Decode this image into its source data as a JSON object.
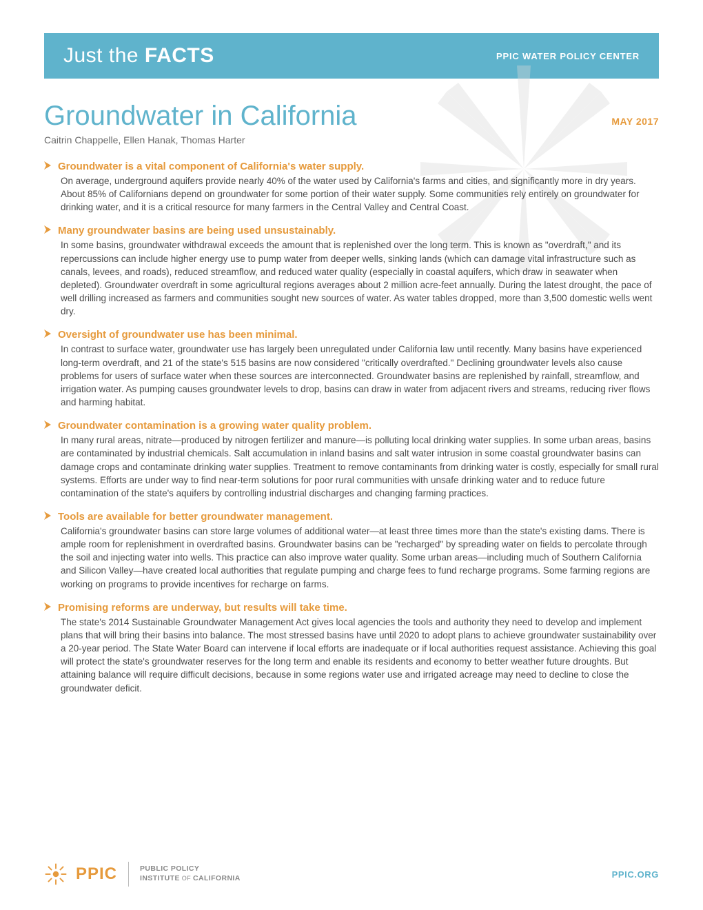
{
  "colors": {
    "teal": "#5fb3cc",
    "orange": "#e69a3c",
    "body_text": "#4a4a4a",
    "light_gray": "#d8d8d8",
    "footer_gray": "#888888",
    "white": "#ffffff"
  },
  "banner": {
    "left_light": "Just the ",
    "left_bold": "FACTS",
    "right": "PPIC WATER POLICY CENTER"
  },
  "title": "Groundwater in California",
  "date": "MAY 2017",
  "authors": "Caitrin Chappelle, Ellen Hanak, Thomas Harter",
  "sections": [
    {
      "heading": "Groundwater is a vital component of California's water supply.",
      "body": "On average, underground aquifers provide nearly 40% of the water used by California's farms and cities, and significantly more in dry years. About 85% of Californians depend on groundwater for some portion of their water supply. Some communities rely entirely on groundwater for drinking water, and it is a critical resource for many farmers in the Central Valley and Central Coast."
    },
    {
      "heading": "Many groundwater basins are being used unsustainably.",
      "body": "In some basins, groundwater withdrawal exceeds the amount that is replenished over the long term. This is known as \"overdraft,\" and its repercussions can include higher energy use to pump water from deeper wells, sinking lands (which can damage vital infrastructure such as canals, levees, and roads), reduced streamflow, and reduced water quality (especially in coastal aquifers, which draw in seawater when depleted). Groundwater overdraft in some agricultural regions averages about 2 million acre-feet annually. During the latest drought, the pace of well drilling increased as farmers and communities sought new sources of water. As water tables dropped, more than 3,500 domestic wells went dry."
    },
    {
      "heading": "Oversight of groundwater use has been minimal.",
      "body": "In contrast to surface water, groundwater use has largely been unregulated under California law until recently. Many basins have experienced long-term overdraft, and 21 of the state's 515 basins are now considered \"critically overdrafted.\" Declining groundwater levels also cause problems for users of surface water when these sources are interconnected. Groundwater basins are replenished by rainfall, streamflow, and irrigation water. As pumping causes groundwater levels to drop, basins can draw in water from adjacent rivers and streams, reducing river flows and harming habitat."
    },
    {
      "heading": "Groundwater contamination is a growing water quality problem.",
      "body": "In many rural areas, nitrate—produced by nitrogen fertilizer and manure—is polluting local drinking water supplies. In some urban areas, basins are contaminated by industrial chemicals. Salt accumulation in inland basins and salt water intrusion in some coastal groundwater basins can damage crops and contaminate drinking water supplies. Treatment to remove contaminants from drinking water is costly, especially for small rural systems. Efforts are under way to find near-term solutions for poor rural communities with unsafe drinking water and to reduce future contamination of the state's aquifers by controlling industrial discharges and changing farming practices."
    },
    {
      "heading": "Tools are available for better groundwater management.",
      "body": "California's groundwater basins can store large volumes of additional water—at least three times more than the state's existing dams. There is ample room for replenishment in overdrafted basins. Groundwater basins can be \"recharged\" by spreading water on fields to percolate through the soil and injecting water into wells. This practice can also improve water quality. Some urban areas—including much of Southern California and Silicon Valley—have created local authorities that regulate pumping and charge fees to fund recharge programs. Some farming regions are working on programs to provide incentives for recharge on farms."
    },
    {
      "heading": "Promising reforms are underway, but results will take time.",
      "body": "The state's 2014 Sustainable Groundwater Management Act gives local agencies the tools and authority they need to develop and implement plans that will bring their basins into balance. The most stressed basins have until 2020 to adopt plans to achieve groundwater sustainability over a 20-year period. The State Water Board can intervene if local efforts are inadequate or if local authorities request assistance. Achieving this goal will protect the state's groundwater reserves for the long term and enable its residents and economy to better weather future droughts. But attaining balance will require difficult decisions, because in some regions water use and irrigated acreage may need to decline to close the groundwater deficit."
    }
  ],
  "footer": {
    "logo_text": "PPIC",
    "line1": "PUBLIC POLICY",
    "line2_a": "INSTITUTE",
    "line2_of": " OF ",
    "line2_b": "CALIFORNIA",
    "url": "PPIC.ORG"
  }
}
